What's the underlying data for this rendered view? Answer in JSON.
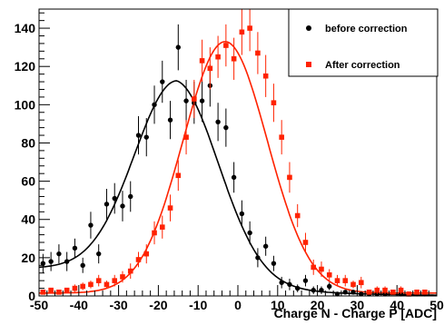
{
  "chart_data": {
    "type": "scatter",
    "title": "",
    "xlabel": "Charge N - Charge P [ADC]",
    "ylabel": "",
    "xlim": [
      -50,
      50
    ],
    "ylim": [
      0,
      150
    ],
    "x_ticks": [
      -50,
      -40,
      -30,
      -20,
      -10,
      0,
      10,
      20,
      30,
      40,
      50
    ],
    "y_ticks": [
      0,
      20,
      40,
      60,
      80,
      100,
      120,
      140
    ],
    "x_tick_labels": [
      "-50",
      "-40",
      "-30",
      "-20",
      "-10",
      "0",
      "10",
      "20",
      "30",
      "40",
      "50"
    ],
    "y_tick_labels": [
      "0",
      "20",
      "40",
      "60",
      "80",
      "100",
      "120",
      "140"
    ],
    "grid": false,
    "legend_position": "top-right",
    "series": [
      {
        "name": "before correction",
        "color": "#000000",
        "marker": "circle",
        "x": [
          -49,
          -47,
          -45,
          -43,
          -41,
          -39,
          -37,
          -35,
          -33,
          -31,
          -29,
          -27,
          -25,
          -23,
          -21,
          -19,
          -17,
          -15,
          -13,
          -11,
          -9,
          -7,
          -5,
          -3,
          -1,
          1,
          3,
          5,
          7,
          9,
          11,
          13,
          15,
          17,
          19,
          21,
          23,
          25,
          27,
          29,
          31,
          33,
          35,
          37,
          39,
          41,
          43,
          45,
          47
        ],
        "y": [
          17,
          18,
          22,
          18,
          25,
          16,
          37,
          22,
          48,
          51,
          47,
          52,
          84,
          83,
          100,
          112,
          92,
          130,
          102,
          101,
          102,
          110,
          91,
          88,
          62,
          43,
          33,
          20,
          26,
          17,
          7,
          6,
          4,
          8,
          3,
          3,
          5,
          1,
          2,
          2,
          1,
          1,
          1,
          1,
          2,
          1,
          1,
          1,
          1
        ],
        "yerr": [
          5,
          5,
          5,
          5,
          5,
          4,
          7,
          5,
          8,
          8,
          8,
          8,
          10,
          10,
          10,
          11,
          10,
          12,
          11,
          11,
          11,
          11,
          10,
          10,
          8,
          7,
          6,
          5,
          5,
          4,
          3,
          3,
          2,
          3,
          2,
          2,
          2,
          1,
          1,
          1,
          1,
          1,
          1,
          1,
          1,
          1,
          1,
          1,
          1
        ],
        "fit": {
          "func": "gauss_plus_const",
          "amplitude": 98,
          "mean": -15.3,
          "sigma": 10.7,
          "offset": 14.5,
          "tail_decay": 18
        }
      },
      {
        "name": "After correction",
        "color": "#ff2200",
        "marker": "square",
        "x": [
          -49,
          -47,
          -45,
          -43,
          -41,
          -39,
          -37,
          -35,
          -33,
          -31,
          -29,
          -27,
          -25,
          -23,
          -21,
          -19,
          -17,
          -15,
          -13,
          -11,
          -9,
          -7,
          -5,
          -3,
          -1,
          1,
          3,
          5,
          7,
          9,
          11,
          13,
          15,
          17,
          19,
          21,
          23,
          25,
          27,
          29,
          31,
          33,
          35,
          37,
          39,
          41,
          43,
          45,
          47
        ],
        "y": [
          2,
          3,
          2,
          3,
          4,
          5,
          6,
          8,
          6,
          8,
          10,
          13,
          19,
          22,
          33,
          36,
          46,
          63,
          83,
          103,
          123,
          119,
          125,
          131,
          124,
          138,
          140,
          127,
          115,
          101,
          83,
          62,
          42,
          28,
          15,
          14,
          11,
          8,
          8,
          6,
          7,
          2,
          3,
          3,
          2,
          3,
          1,
          2,
          2
        ],
        "yerr": [
          1,
          1,
          1,
          1,
          2,
          2,
          2,
          3,
          2,
          3,
          3,
          4,
          4,
          5,
          6,
          6,
          7,
          8,
          9,
          10,
          11,
          11,
          11,
          11,
          11,
          12,
          12,
          11,
          11,
          10,
          9,
          8,
          6,
          5,
          4,
          4,
          3,
          3,
          3,
          2,
          3,
          1,
          2,
          2,
          1,
          2,
          1,
          1,
          1
        ],
        "fit": {
          "func": "gauss_plus_const",
          "amplitude": 131.5,
          "mean": -3.2,
          "sigma": 10.6,
          "offset": 1.5
        }
      }
    ]
  }
}
